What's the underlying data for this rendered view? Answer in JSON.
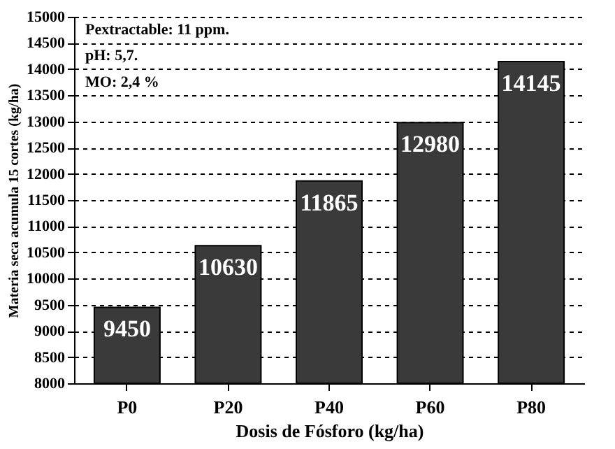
{
  "chart_data": {
    "type": "bar",
    "xlabel": "Dosis de Fósforo (kg/ha)",
    "ylabel": "Materia seca acumula 15 cortes (kg/ha)",
    "categories": [
      "P0",
      "P20",
      "P40",
      "P60",
      "P80"
    ],
    "values": [
      9450,
      10630,
      11865,
      12980,
      14145
    ],
    "color": "#3a3a3a",
    "ylim": [
      8000,
      15000
    ],
    "yticks": [
      8000,
      8500,
      9000,
      9500,
      10000,
      10500,
      11000,
      11500,
      12000,
      12500,
      13000,
      13500,
      14000,
      14500,
      15000
    ],
    "grid": "y",
    "data_labels": true,
    "annotations": [
      "Pextractable: 11 ppm.",
      "pH: 5,7.",
      "MO: 2,4 %"
    ]
  }
}
